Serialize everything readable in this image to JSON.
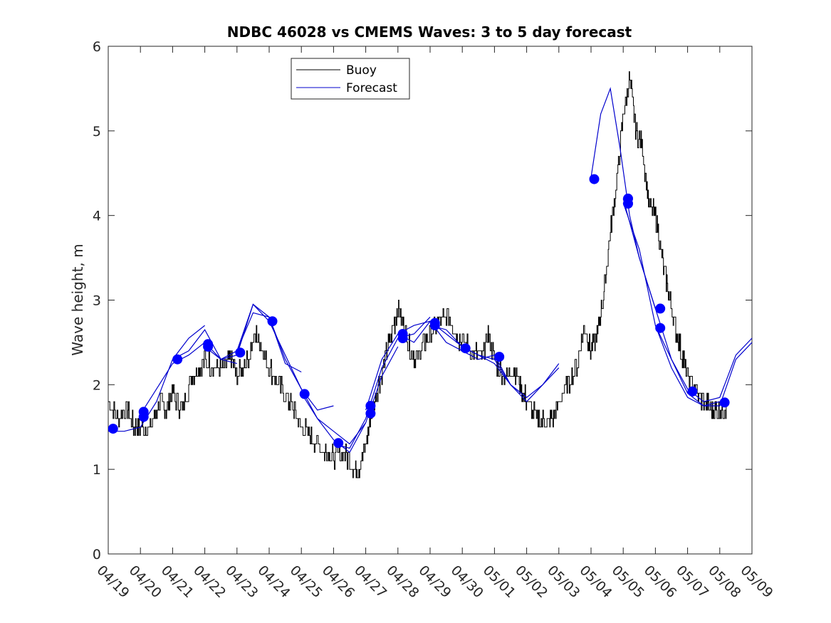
{
  "chart_data": {
    "type": "line",
    "title": "NDBC 46028 vs CMEMS Waves: 3 to 5 day forecast",
    "xlabel": "",
    "ylabel": "Wave height, m",
    "ylim": [
      0,
      6
    ],
    "yticks": [
      0,
      1,
      2,
      3,
      4,
      5,
      6
    ],
    "xlim_days": [
      0,
      20
    ],
    "xtick_labels": [
      "04/19",
      "04/20",
      "04/21",
      "04/22",
      "04/23",
      "04/24",
      "04/25",
      "04/26",
      "04/27",
      "04/28",
      "04/29",
      "04/30",
      "05/01",
      "05/02",
      "05/03",
      "05/04",
      "05/05",
      "05/06",
      "05/07",
      "05/08",
      "05/09"
    ],
    "grid": false,
    "legend_position": "top-left",
    "legend": [
      {
        "label": "Buoy",
        "color": "#000000"
      },
      {
        "label": "Forecast",
        "color": "#0000cd"
      }
    ],
    "buoy": {
      "name": "Buoy",
      "color": "#000000",
      "x": [
        0,
        0.3,
        0.6,
        0.8,
        1.0,
        1.3,
        1.6,
        1.8,
        2.0,
        2.3,
        2.6,
        2.8,
        3.0,
        3.3,
        3.6,
        3.8,
        4.0,
        4.3,
        4.6,
        4.8,
        5.0,
        5.3,
        5.6,
        5.8,
        6.0,
        6.3,
        6.6,
        6.8,
        7.0,
        7.3,
        7.6,
        7.8,
        8.0,
        8.2,
        8.4,
        8.6,
        8.8,
        9.0,
        9.2,
        9.4,
        9.6,
        9.8,
        10.0,
        10.3,
        10.6,
        10.8,
        11.0,
        11.3,
        11.6,
        11.8,
        12.0,
        12.3,
        12.6,
        12.8,
        13.0,
        13.3,
        13.6,
        13.8,
        14.0,
        14.3,
        14.6,
        14.8,
        15.0,
        15.2,
        15.4,
        15.6,
        15.8,
        16.0,
        16.2,
        16.4,
        16.6,
        16.8,
        17.0,
        17.2,
        17.4,
        17.6,
        17.8,
        18.0,
        18.3,
        18.6,
        18.8,
        19.0,
        19.2
      ],
      "y": [
        1.8,
        1.6,
        1.7,
        1.5,
        1.5,
        1.5,
        1.8,
        1.7,
        1.9,
        1.7,
        2.1,
        2.2,
        2.3,
        2.2,
        2.2,
        2.3,
        2.1,
        2.3,
        2.6,
        2.4,
        2.2,
        2.0,
        1.8,
        1.7,
        1.5,
        1.4,
        1.25,
        1.2,
        1.15,
        1.2,
        1.05,
        1.0,
        1.3,
        1.7,
        2.0,
        2.3,
        2.6,
        2.9,
        2.7,
        2.4,
        2.3,
        2.5,
        2.6,
        2.75,
        2.8,
        2.6,
        2.5,
        2.4,
        2.3,
        2.6,
        2.3,
        2.1,
        2.2,
        2.0,
        1.8,
        1.6,
        1.55,
        1.6,
        1.8,
        2.0,
        2.3,
        2.7,
        2.4,
        2.6,
        3.1,
        3.8,
        4.4,
        5.2,
        5.6,
        5.0,
        4.8,
        4.1,
        4.0,
        3.5,
        3.1,
        2.7,
        2.4,
        2.1,
        1.9,
        1.75,
        1.7,
        1.7,
        1.75
      ]
    },
    "forecast_series": [
      {
        "x": [
          0,
          0.5,
          1.0,
          1.5,
          2.0,
          2.5,
          3.0
        ],
        "y": [
          1.45,
          1.45,
          1.5,
          1.8,
          2.3,
          2.55,
          2.7
        ]
      },
      {
        "x": [
          1.0,
          1.5,
          2.0,
          2.5,
          3.0,
          3.5,
          4.0
        ],
        "y": [
          1.65,
          1.95,
          2.25,
          2.35,
          2.5,
          2.3,
          2.25
        ]
      },
      {
        "x": [
          2.0,
          2.5,
          3.0,
          3.5,
          4.0,
          4.5,
          5.0
        ],
        "y": [
          2.3,
          2.4,
          2.65,
          2.3,
          2.35,
          2.95,
          2.75
        ]
      },
      {
        "x": [
          3.0,
          3.5,
          4.0,
          4.5,
          5.0,
          5.5,
          6.0
        ],
        "y": [
          2.45,
          2.3,
          2.4,
          2.85,
          2.8,
          2.25,
          2.15
        ]
      },
      {
        "x": [
          4.0,
          4.5,
          5.0,
          5.5,
          6.0,
          6.5,
          7.0
        ],
        "y": [
          2.4,
          2.95,
          2.8,
          2.3,
          1.95,
          1.7,
          1.75
        ]
      },
      {
        "x": [
          5.0,
          5.5,
          6.0,
          6.5,
          7.0,
          7.5,
          8.0
        ],
        "y": [
          2.75,
          2.35,
          1.95,
          1.6,
          1.45,
          1.3,
          1.55
        ]
      },
      {
        "x": [
          6.0,
          6.5,
          7.0,
          7.5,
          8.0,
          8.5,
          9.0
        ],
        "y": [
          1.9,
          1.6,
          1.35,
          1.2,
          1.55,
          2.1,
          2.45
        ]
      },
      {
        "x": [
          7.0,
          7.5,
          8.0,
          8.5,
          9.0,
          9.5,
          10.0
        ],
        "y": [
          1.3,
          1.25,
          1.6,
          2.2,
          2.55,
          2.6,
          2.8
        ]
      },
      {
        "x": [
          8.0,
          8.5,
          9.0,
          9.5,
          10.0,
          10.5,
          11.0
        ],
        "y": [
          1.7,
          2.3,
          2.6,
          2.5,
          2.75,
          2.6,
          2.45
        ]
      },
      {
        "x": [
          9.0,
          9.5,
          10.0,
          10.5,
          11.0,
          11.5,
          12.0
        ],
        "y": [
          2.6,
          2.7,
          2.75,
          2.5,
          2.4,
          2.3,
          2.35
        ]
      },
      {
        "x": [
          10.0,
          10.5,
          11.0,
          11.5,
          12.0,
          12.5,
          13.0
        ],
        "y": [
          2.7,
          2.65,
          2.45,
          2.35,
          2.25,
          2.0,
          1.85
        ]
      },
      {
        "x": [
          11.0,
          11.5,
          12.0,
          12.5,
          13.0,
          13.5,
          14.0
        ],
        "y": [
          2.45,
          2.35,
          2.3,
          2.0,
          1.85,
          2.0,
          2.2
        ]
      },
      {
        "x": [
          12.0,
          12.5,
          13.0,
          13.5,
          14.0
        ],
        "y": [
          2.35,
          2.0,
          1.8,
          2.0,
          2.25
        ]
      },
      {
        "x": [
          15.0,
          15.3,
          15.6,
          15.9,
          16.2,
          16.5,
          17.0
        ],
        "y": [
          4.45,
          5.2,
          5.5,
          4.8,
          4.0,
          3.5,
          2.9
        ]
      },
      {
        "x": [
          16.0,
          16.5,
          17.0,
          17.5,
          18.0,
          18.5,
          19.0
        ],
        "y": [
          4.2,
          3.5,
          2.9,
          2.3,
          1.9,
          1.75,
          1.8
        ]
      },
      {
        "x": [
          16.0,
          16.5,
          17.0,
          17.5,
          18.0,
          18.5,
          19.0,
          19.5,
          20.0
        ],
        "y": [
          4.15,
          3.6,
          2.7,
          2.2,
          1.85,
          1.75,
          1.75,
          2.3,
          2.5
        ]
      },
      {
        "x": [
          17.0,
          17.5,
          18.0,
          18.5,
          19.0,
          19.5,
          20.0
        ],
        "y": [
          2.7,
          2.3,
          1.95,
          1.8,
          1.85,
          2.35,
          2.55
        ]
      }
    ],
    "markers": {
      "color": "#0000ff",
      "x": [
        0.15,
        1.1,
        1.1,
        2.15,
        3.1,
        3.1,
        4.1,
        5.1,
        6.1,
        7.15,
        8.15,
        8.15,
        9.15,
        9.15,
        10.15,
        10.15,
        11.1,
        12.15,
        15.1,
        16.15,
        16.15,
        17.15,
        17.15,
        18.15,
        19.15
      ],
      "y": [
        1.48,
        1.68,
        1.62,
        2.3,
        2.48,
        2.45,
        2.38,
        2.75,
        1.89,
        1.31,
        1.75,
        1.66,
        2.6,
        2.55,
        2.73,
        2.7,
        2.43,
        2.33,
        4.43,
        4.2,
        4.14,
        2.9,
        2.67,
        1.92,
        1.79
      ]
    }
  }
}
